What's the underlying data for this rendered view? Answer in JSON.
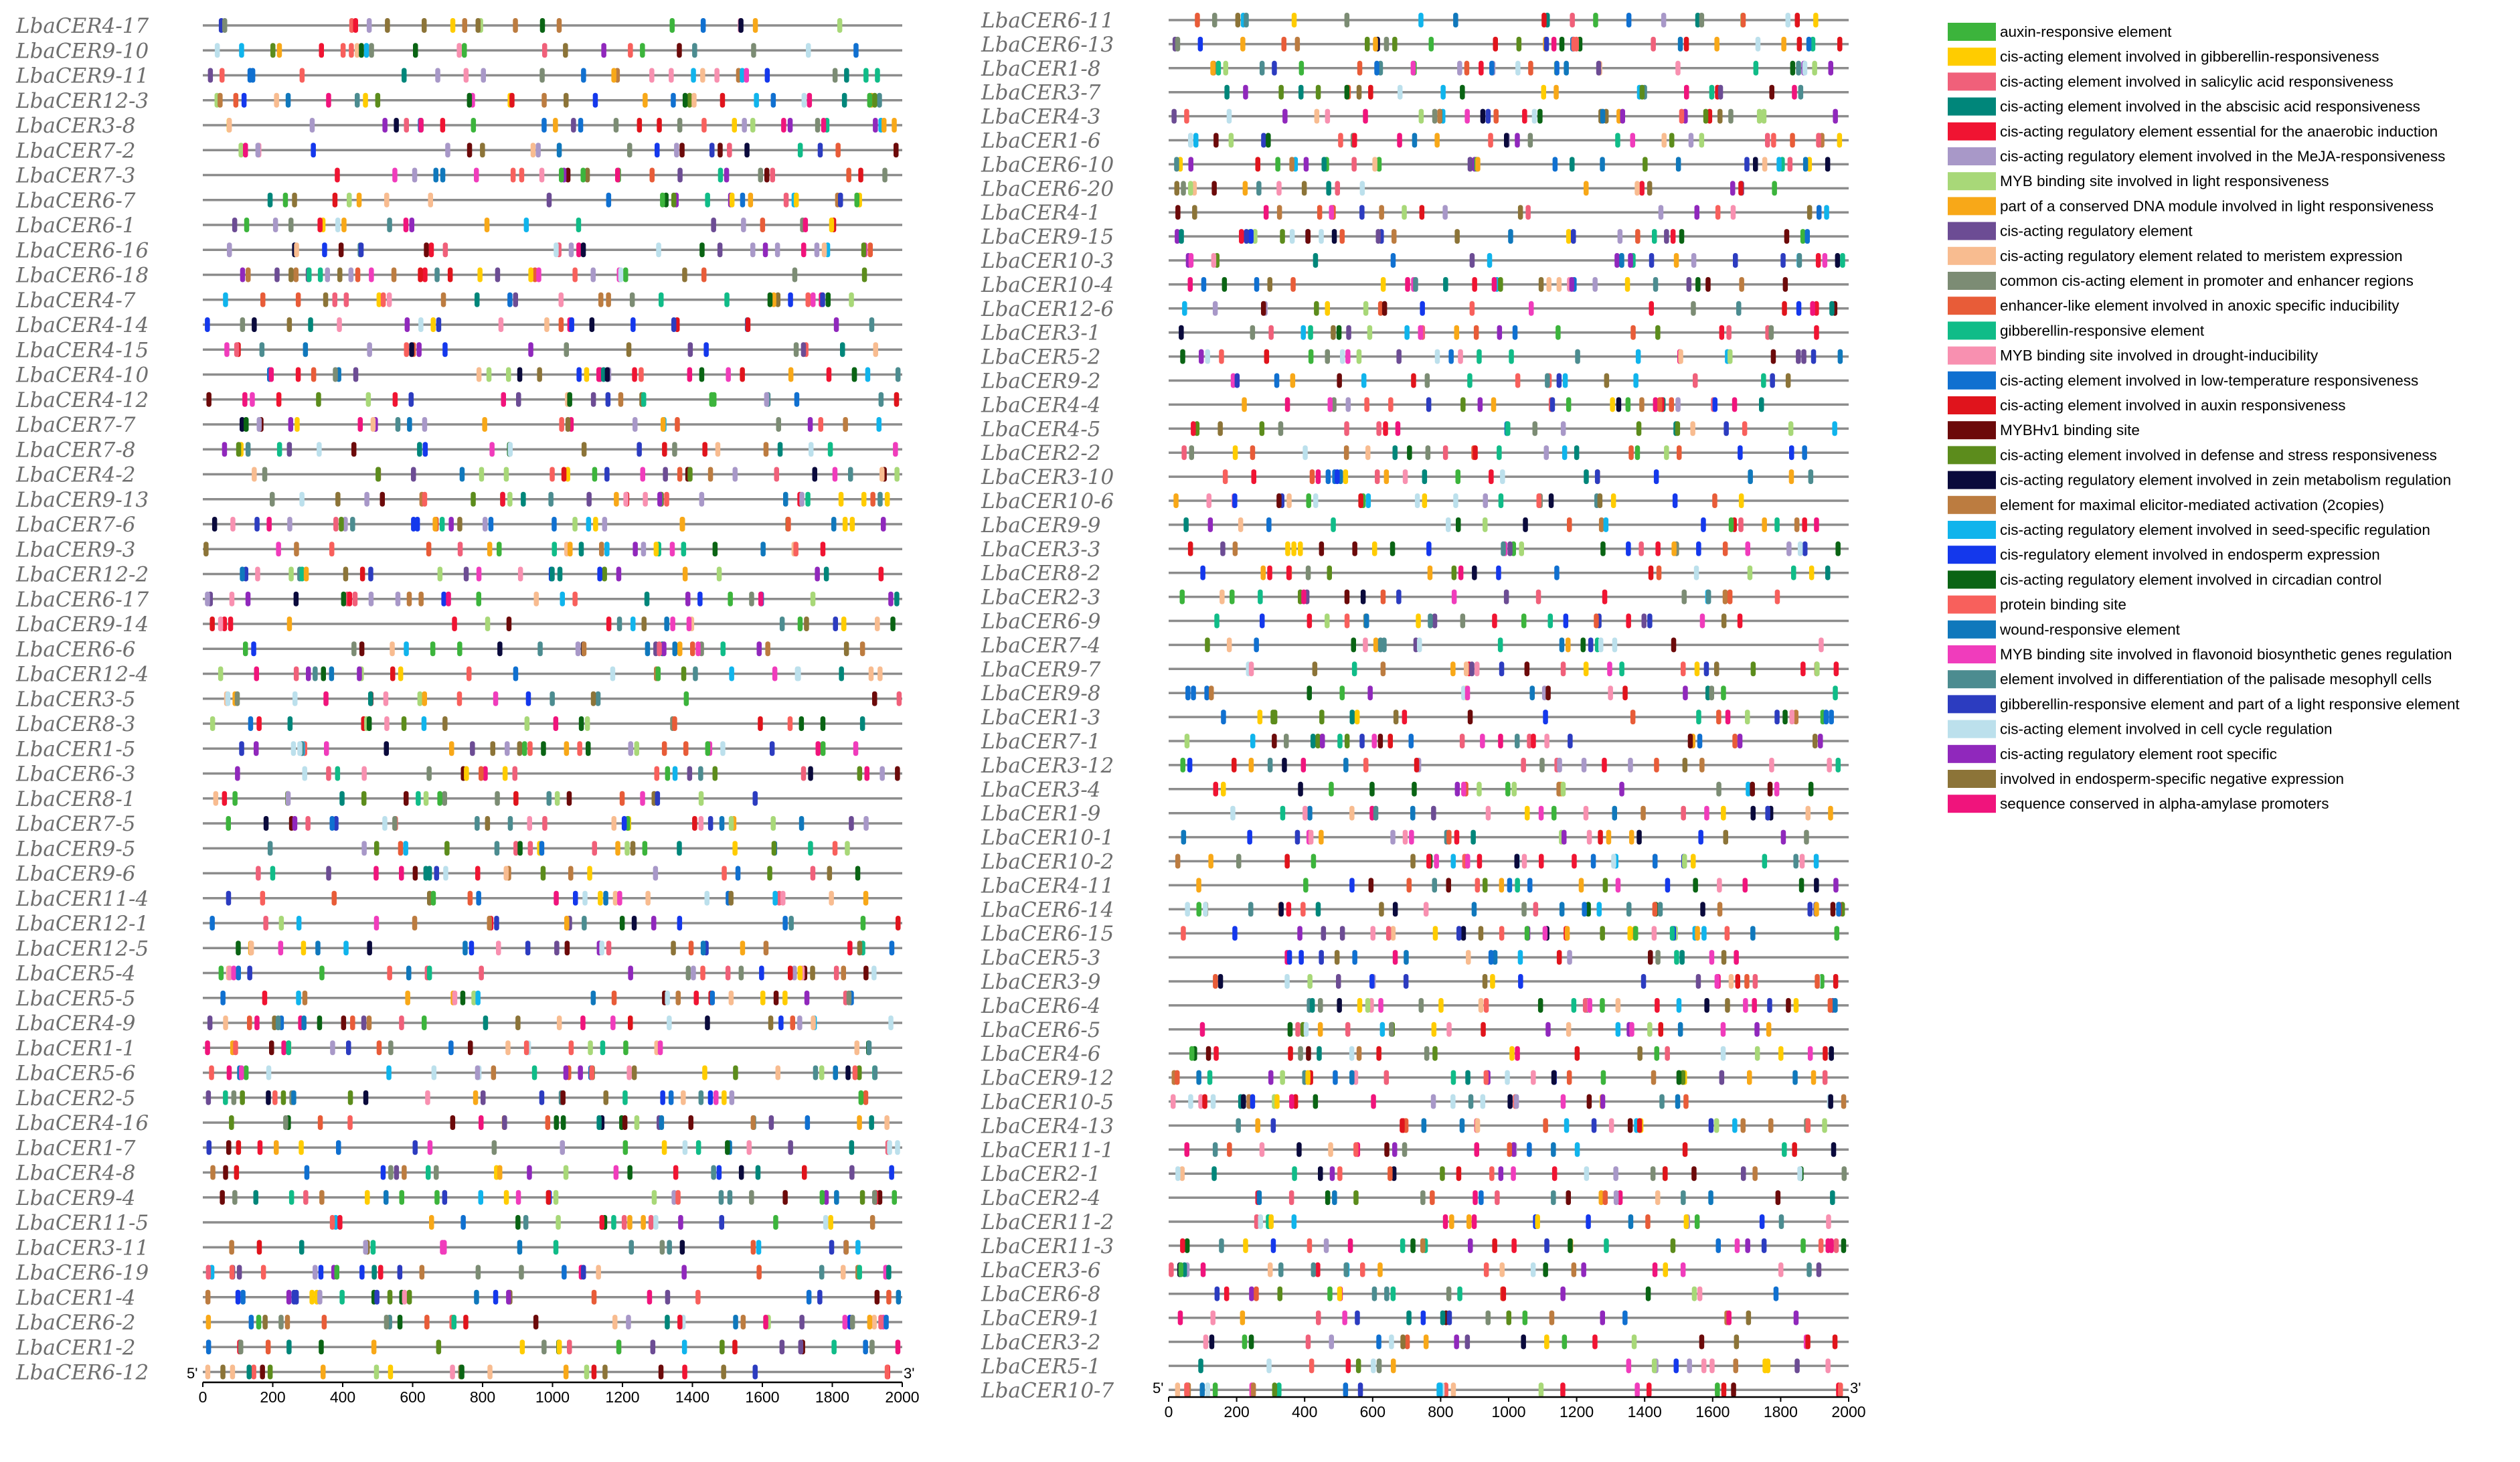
{
  "panels": [
    {
      "genes": [
        "LbaCER4-17",
        "LbaCER9-10",
        "LbaCER9-11",
        "LbaCER12-3",
        "LbaCER3-8",
        "LbaCER7-2",
        "LbaCER7-3",
        "LbaCER6-7",
        "LbaCER6-1",
        "LbaCER6-16",
        "LbaCER6-18",
        "LbaCER4-7",
        "LbaCER4-14",
        "LbaCER4-15",
        "LbaCER4-10",
        "LbaCER4-12",
        "LbaCER7-7",
        "LbaCER7-8",
        "LbaCER4-2",
        "LbaCER9-13",
        "LbaCER7-6",
        "LbaCER9-3",
        "LbaCER12-2",
        "LbaCER6-17",
        "LbaCER9-14",
        "LbaCER6-6",
        "LbaCER12-4",
        "LbaCER3-5",
        "LbaCER8-3",
        "LbaCER1-5",
        "LbaCER6-3",
        "LbaCER8-1",
        "LbaCER7-5",
        "LbaCER9-5",
        "LbaCER9-6",
        "LbaCER11-4",
        "LbaCER12-1",
        "LbaCER12-5",
        "LbaCER5-4",
        "LbaCER5-5",
        "LbaCER4-9",
        "LbaCER1-1",
        "LbaCER5-6",
        "LbaCER2-5",
        "LbaCER4-16",
        "LbaCER1-7",
        "LbaCER4-8",
        "LbaCER9-4",
        "LbaCER11-5",
        "LbaCER3-11",
        "LbaCER6-19",
        "LbaCER1-4",
        "LbaCER6-2",
        "LbaCER1-2",
        "LbaCER6-12"
      ],
      "axis": {
        "ticks": [
          "0",
          "200",
          "400",
          "600",
          "800",
          "1000",
          "1200",
          "1400",
          "1600",
          "1800",
          "2000"
        ],
        "left_end": "5'",
        "right_end": "3'"
      }
    },
    {
      "genes": [
        "LbaCER6-11",
        "LbaCER6-13",
        "LbaCER1-8",
        "LbaCER3-7",
        "LbaCER4-3",
        "LbaCER1-6",
        "LbaCER6-10",
        "LbaCER6-20",
        "LbaCER4-1",
        "LbaCER9-15",
        "LbaCER10-3",
        "LbaCER10-4",
        "LbaCER12-6",
        "LbaCER3-1",
        "LbaCER5-2",
        "LbaCER9-2",
        "LbaCER4-4",
        "LbaCER4-5",
        "LbaCER2-2",
        "LbaCER3-10",
        "LbaCER10-6",
        "LbaCER9-9",
        "LbaCER3-3",
        "LbaCER8-2",
        "LbaCER2-3",
        "LbaCER6-9",
        "LbaCER7-4",
        "LbaCER9-7",
        "LbaCER9-8",
        "LbaCER1-3",
        "LbaCER7-1",
        "LbaCER3-12",
        "LbaCER3-4",
        "LbaCER1-9",
        "LbaCER10-1",
        "LbaCER10-2",
        "LbaCER4-11",
        "LbaCER6-14",
        "LbaCER6-15",
        "LbaCER5-3",
        "LbaCER3-9",
        "LbaCER6-4",
        "LbaCER6-5",
        "LbaCER4-6",
        "LbaCER9-12",
        "LbaCER10-5",
        "LbaCER4-13",
        "LbaCER11-1",
        "LbaCER2-1",
        "LbaCER2-4",
        "LbaCER11-2",
        "LbaCER11-3",
        "LbaCER3-6",
        "LbaCER6-8",
        "LbaCER9-1",
        "LbaCER3-2",
        "LbaCER5-1",
        "LbaCER10-7"
      ],
      "axis": {
        "ticks": [
          "0",
          "200",
          "400",
          "600",
          "800",
          "1000",
          "1200",
          "1400",
          "1600",
          "1800",
          "2000"
        ],
        "left_end": "5'",
        "right_end": "3'"
      }
    }
  ],
  "legend": [
    {
      "label": "auxin-responsive element",
      "color": "#3cb43c"
    },
    {
      "label": "cis-acting element involved in gibberellin-responsiveness",
      "color": "#ffcc00"
    },
    {
      "label": "cis-acting element involved in salicylic acid responsiveness",
      "color": "#f0607a"
    },
    {
      "label": "cis-acting element involved in the abscisic acid responsiveness",
      "color": "#00867a"
    },
    {
      "label": "cis-acting regulatory element essential for the anaerobic induction",
      "color": "#f01432"
    },
    {
      "label": "cis-acting regulatory element involved in the MeJA-responsiveness",
      "color": "#a898c8"
    },
    {
      "label": "MYB binding site involved in light responsiveness",
      "color": "#a8d878"
    },
    {
      "label": "part of a conserved DNA module involved in light responsiveness",
      "color": "#f8a818"
    },
    {
      "label": "cis-acting regulatory element",
      "color": "#6c4c94"
    },
    {
      "label": "cis-acting regulatory element related to meristem expression",
      "color": "#f8bc90"
    },
    {
      "label": "common cis-acting element in promoter and enhancer regions",
      "color": "#7c8c74"
    },
    {
      "label": "enhancer-like element involved in anoxic specific inducibility",
      "color": "#e85c38"
    },
    {
      "label": "gibberellin-responsive element",
      "color": "#10bc88"
    },
    {
      "label": "MYB binding site involved in drought-inducibility",
      "color": "#f890b0"
    },
    {
      "label": "cis-acting element involved in low-temperature responsiveness",
      "color": "#1070d0"
    },
    {
      "label": "cis-acting element involved in auxin responsiveness",
      "color": "#e0141c"
    },
    {
      "label": "MYBHv1 binding site",
      "color": "#6c0a0a"
    },
    {
      "label": "cis-acting element involved in defense and stress responsiveness",
      "color": "#5c8c1c"
    },
    {
      "label": "cis-acting regulatory element involved in zein metabolism regulation",
      "color": "#0a0a3c"
    },
    {
      "label": "element for maximal elicitor-mediated activation (2copies)",
      "color": "#bc7c40"
    },
    {
      "label": "cis-acting regulatory element involved in seed-specific regulation",
      "color": "#10b4ec"
    },
    {
      "label": "cis-regulatory element involved in endosperm expression",
      "color": "#1438ec"
    },
    {
      "label": "cis-acting regulatory element involved in circadian control",
      "color": "#0a6414"
    },
    {
      "label": "protein binding site",
      "color": "#f8605c"
    },
    {
      "label": "wound-responsive element",
      "color": "#1078bc"
    },
    {
      "label": "MYB binding site involved in flavonoid biosynthetic genes regulation",
      "color": "#f03cbc"
    },
    {
      "label": "element involved in differentiation of the palisade mesophyll cells",
      "color": "#4c8c90"
    },
    {
      "label": "gibberellin-responsive element and part of a light responsive element",
      "color": "#2c3cc0"
    },
    {
      "label": "cis-acting element involved in cell cycle regulation",
      "color": "#bce0ec"
    },
    {
      "label": "cis-acting regulatory element root specific",
      "color": "#9028bc"
    },
    {
      "label": "involved in endosperm-specific negative expression",
      "color": "#8c7438"
    },
    {
      "label": "sequence conserved in alpha-amylase promoters",
      "color": "#f0147c"
    }
  ]
}
